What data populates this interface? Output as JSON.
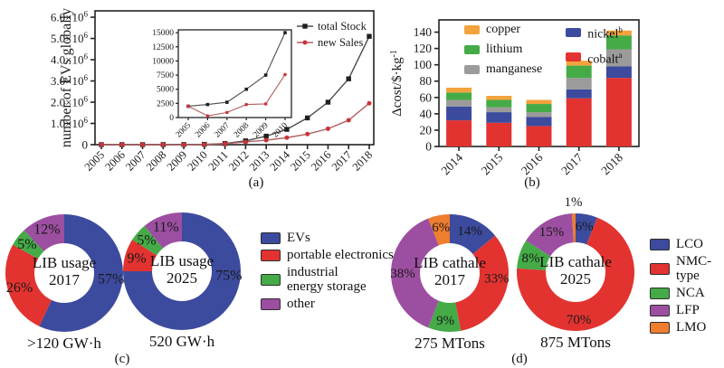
{
  "figure": {
    "background": "#ffffff"
  },
  "chart_data": [
    {
      "id": "a",
      "type": "line",
      "panel_label": "(a)",
      "ylabel": "number of EVs globally",
      "x_labels": [
        "2005",
        "2006",
        "2007",
        "2008",
        "2009",
        "2010",
        "2011",
        "2012",
        "2013",
        "2014",
        "2015",
        "2016",
        "2017",
        "2018"
      ],
      "yticks": [
        {
          "v": 0,
          "t": "0"
        },
        {
          "v": 1000000,
          "t": "1.0×10",
          "sup": "6"
        },
        {
          "v": 2000000,
          "t": "2.0×10",
          "sup": "6"
        },
        {
          "v": 3000000,
          "t": "3.0×10",
          "sup": "6"
        },
        {
          "v": 4000000,
          "t": "4.0×10",
          "sup": "6"
        },
        {
          "v": 5000000,
          "t": "5.0×10",
          "sup": "6"
        },
        {
          "v": 6000000,
          "t": "6.0×10",
          "sup": "6"
        }
      ],
      "ylim": [
        0,
        6300000
      ],
      "series": [
        {
          "name": "total Stock",
          "marker": "square",
          "marker_color": "#1f1f1f",
          "line_color": "#4d4d4d",
          "values": [
            2000,
            2300,
            2700,
            5000,
            7500,
            15000,
            55000,
            180000,
            400000,
            720000,
            1260000,
            2000000,
            3100000,
            5100000
          ]
        },
        {
          "name": "new Sales",
          "marker": "circle",
          "marker_color": "#cb3338",
          "line_color": "#b05f60",
          "values": [
            2000,
            300,
            900,
            2300,
            2400,
            7600,
            45000,
            130000,
            210000,
            330000,
            500000,
            750000,
            1150000,
            1950000
          ]
        }
      ],
      "inset": {
        "x_labels": [
          "2005",
          "2006",
          "2007",
          "2008",
          "2009",
          "2010"
        ],
        "yticks": [
          0,
          2500,
          5000,
          7500,
          10000,
          12500,
          15000
        ],
        "ylim": [
          0,
          15500
        ]
      }
    },
    {
      "id": "b",
      "type": "bar-stacked",
      "panel_label": "(b)",
      "ylabel_parts": [
        {
          "t": "Δcost/$·kg"
        },
        {
          "t": "-1",
          "sup": true
        }
      ],
      "categories": [
        "2014",
        "2015",
        "2016",
        "2017",
        "2018"
      ],
      "ytick_values": [
        0,
        20,
        40,
        60,
        80,
        100,
        120,
        140
      ],
      "ylim": [
        0,
        155
      ],
      "series": [
        {
          "name": "cobalt",
          "sup": "a",
          "color": "#e23330",
          "values": [
            32,
            29,
            25,
            59,
            84
          ]
        },
        {
          "name": "nickel",
          "sup": "b",
          "color": "#3c4b9e",
          "values": [
            17,
            13,
            11,
            11,
            14
          ]
        },
        {
          "name": "manganese",
          "color": "#9b9b9b",
          "values": [
            8,
            6,
            6,
            14,
            21
          ]
        },
        {
          "name": "lithium",
          "color": "#44ab47",
          "values": [
            9,
            9,
            10,
            15,
            17
          ]
        },
        {
          "name": "copper",
          "color": "#f2a33c",
          "values": [
            6,
            5,
            5,
            6,
            6
          ]
        }
      ],
      "legend_order": [
        "copper",
        "lithium",
        "manganese",
        "nickel",
        "cobalt"
      ]
    },
    {
      "id": "c",
      "type": "pie",
      "panel_label": "(c)",
      "legend": [
        {
          "lines": [
            "EVs"
          ],
          "color": "#3c4b9e"
        },
        {
          "lines": [
            "portable electronics"
          ],
          "color": "#e23330"
        },
        {
          "lines": [
            "industrial",
            "energy storage"
          ],
          "color": "#44ab47"
        },
        {
          "lines": [
            "other"
          ],
          "color": "#9c4fa0"
        }
      ],
      "donuts": [
        {
          "center_line1": "LIB usage",
          "center_line2": "2017",
          "caption": ">120 GW·h",
          "slices": [
            {
              "label": "EVs",
              "pct": 57,
              "color": "#3c4b9e",
              "label_angle": 97
            },
            {
              "label": "portable electronics",
              "pct": 26,
              "color": "#e23330"
            },
            {
              "label": "industrial energy storage",
              "pct": 5,
              "color": "#44ab47"
            },
            {
              "label": "other",
              "pct": 12,
              "color": "#9c4fa0"
            }
          ]
        },
        {
          "center_line1": "LIB usage",
          "center_line2": "2025",
          "caption": "520 GW·h",
          "slices": [
            {
              "label": "EVs",
              "pct": 75,
              "color": "#3c4b9e",
              "label_angle": 95
            },
            {
              "label": "portable electronics",
              "pct": 9,
              "color": "#e23330"
            },
            {
              "label": "industrial energy storage",
              "pct": 5,
              "color": "#44ab47"
            },
            {
              "label": "other",
              "pct": 11,
              "color": "#9c4fa0"
            }
          ]
        }
      ]
    },
    {
      "id": "d",
      "type": "pie",
      "panel_label": "(d)",
      "legend": [
        {
          "lines": [
            "LCO"
          ],
          "color": "#3c4b9e"
        },
        {
          "lines": [
            "NMC-type"
          ],
          "color": "#e23330"
        },
        {
          "lines": [
            "NCA"
          ],
          "color": "#44ab47"
        },
        {
          "lines": [
            "LFP"
          ],
          "color": "#9c4fa0"
        },
        {
          "lines": [
            "LMO"
          ],
          "color": "#ee7d2e"
        }
      ],
      "donuts": [
        {
          "center_line1": "LIB cathale",
          "center_line2": "2017",
          "caption": "275 MTons",
          "slices": [
            {
              "label": "LCO",
              "pct": 14,
              "color": "#3c4b9e"
            },
            {
              "label": "NMC-type",
              "pct": 33,
              "color": "#e23330",
              "label_angle": 96
            },
            {
              "label": "NCA",
              "pct": 9,
              "color": "#44ab47"
            },
            {
              "label": "LFP",
              "pct": 38,
              "color": "#9c4fa0"
            },
            {
              "label": "LMO",
              "pct": 6,
              "color": "#ee7d2e"
            }
          ]
        },
        {
          "center_line1": "LIB cathale",
          "center_line2": "2025",
          "caption": "875 MTons",
          "slices": [
            {
              "label": "LCO",
              "pct": 6,
              "color": "#3c4b9e"
            },
            {
              "label": "NMC-type",
              "pct": 70,
              "color": "#e23330",
              "label_angle": 176
            },
            {
              "label": "NCA",
              "pct": 8,
              "color": "#44ab47"
            },
            {
              "label": "LFP",
              "pct": 15,
              "color": "#9c4fa0"
            },
            {
              "label": "LMO",
              "pct": 1,
              "color": "#ee7d2e",
              "outside": true
            }
          ]
        }
      ]
    }
  ]
}
